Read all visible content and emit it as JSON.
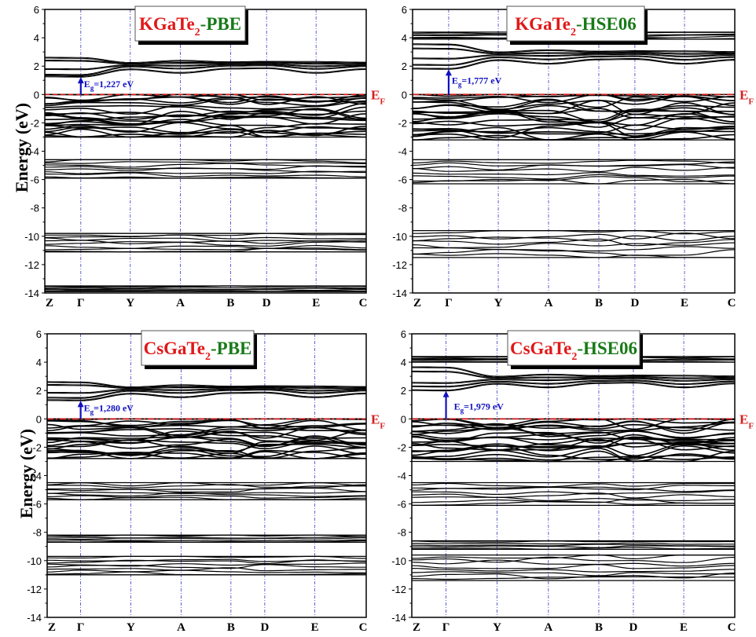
{
  "figure": {
    "ylabel": "Energy (eV)",
    "fermi_label": "E",
    "fermi_sub": "F"
  },
  "chart_data": [
    {
      "type": "line",
      "title": "KGaTe2-PBE",
      "title_parts": {
        "compound": "KGaTe",
        "sub": "2",
        "method": "-PBE"
      },
      "xlabel": "",
      "ylabel": "Energy (eV)",
      "ylim": [
        -14,
        6
      ],
      "yticks": [
        6,
        4,
        2,
        0,
        -2,
        -4,
        -6,
        -8,
        -10,
        -12,
        -14
      ],
      "kpoints": [
        "Z",
        "Γ",
        "Y",
        "A",
        "B",
        "D",
        "E",
        "C"
      ],
      "kpoint_pos": [
        0,
        0.112,
        0.266,
        0.422,
        0.578,
        0.69,
        0.844,
        1.0
      ],
      "band_gap": {
        "label": "E",
        "sub": "g",
        "value": "=1,227 eV",
        "eV": 1.227,
        "at": "Γ"
      },
      "fermi_level": 0,
      "band_groups": [
        {
          "name": "conduction",
          "range": [
            1.2,
            2.6
          ],
          "Gamma": [
            1.23,
            1.35,
            1.75,
            2.35,
            2.55
          ],
          "rest": [
            1.75,
            1.95,
            2.05,
            2.15,
            2.2
          ]
        },
        {
          "name": "valence",
          "range": [
            -3.0,
            0.0
          ]
        },
        {
          "name": "semicore-1",
          "range": [
            -5.9,
            -4.6
          ]
        },
        {
          "name": "semicore-2",
          "range": [
            -11.1,
            -9.8
          ]
        },
        {
          "name": "deep",
          "range": [
            -13.9,
            -13.5
          ]
        }
      ]
    },
    {
      "type": "line",
      "title": "KGaTe2-HSE06",
      "title_parts": {
        "compound": "KGaTe",
        "sub": "2",
        "method": "-HSE06"
      },
      "xlabel": "",
      "ylabel": "",
      "ylim": [
        -14,
        6
      ],
      "yticks": [
        6,
        4,
        2,
        0,
        -2,
        -4,
        -6,
        -8,
        -10,
        -12,
        -14
      ],
      "kpoints": [
        "Z",
        "Γ",
        "Y",
        "A",
        "B",
        "D",
        "E",
        "C"
      ],
      "kpoint_pos": [
        0,
        0.112,
        0.266,
        0.422,
        0.578,
        0.69,
        0.844,
        1.0
      ],
      "band_gap": {
        "label": "E",
        "sub": "g",
        "value": "=1,777 eV",
        "eV": 1.777,
        "at": "Γ"
      },
      "fermi_level": 0,
      "band_groups": [
        {
          "name": "conduction-low",
          "range": [
            1.8,
            3.5
          ],
          "Gamma": [
            1.78,
            2.05,
            2.5,
            3.2,
            3.5
          ],
          "rest": [
            2.4,
            2.6,
            2.75,
            2.85,
            2.95
          ]
        },
        {
          "name": "conduction-high",
          "range": [
            3.9,
            4.4
          ]
        },
        {
          "name": "valence",
          "range": [
            -3.2,
            0.0
          ]
        },
        {
          "name": "semicore-1",
          "range": [
            -6.3,
            -4.6
          ]
        },
        {
          "name": "semicore-2",
          "range": [
            -11.5,
            -9.6
          ]
        }
      ]
    },
    {
      "type": "line",
      "title": "CsGaTe2-PBE",
      "title_parts": {
        "compound": "CsGaTe",
        "sub": "2",
        "method": "-PBE"
      },
      "xlabel": "",
      "ylabel": "Energy (eV)",
      "ylim": [
        -14,
        6
      ],
      "yticks": [
        6,
        4,
        2,
        0,
        -2,
        -4,
        -6,
        -8,
        -10,
        -12,
        -14
      ],
      "kpoints": [
        "Z",
        "Γ",
        "Y",
        "A",
        "B",
        "D",
        "E",
        "C"
      ],
      "kpoint_pos": [
        0,
        0.105,
        0.262,
        0.42,
        0.576,
        0.682,
        0.839,
        1.0
      ],
      "band_gap": {
        "label": "E",
        "sub": "g",
        "value": "=1,280 eV",
        "eV": 1.28,
        "at": "Γ"
      },
      "fermi_level": 0,
      "band_groups": [
        {
          "name": "conduction",
          "range": [
            1.28,
            2.6
          ],
          "Gamma": [
            1.28,
            1.45,
            1.8,
            2.35,
            2.55
          ],
          "rest": [
            1.75,
            1.95,
            2.05,
            2.15,
            2.2
          ]
        },
        {
          "name": "valence",
          "range": [
            -2.8,
            0.0
          ]
        },
        {
          "name": "semicore-1",
          "range": [
            -5.7,
            -4.5
          ]
        },
        {
          "name": "semicore-2",
          "range": [
            -8.7,
            -8.2
          ]
        },
        {
          "name": "semicore-3",
          "range": [
            -11.0,
            -9.7
          ]
        }
      ]
    },
    {
      "type": "line",
      "title": "CsGaTe2-HSE06",
      "title_parts": {
        "compound": "CsGaTe",
        "sub": "2",
        "method": "-HSE06"
      },
      "xlabel": "",
      "ylabel": "",
      "ylim": [
        -14,
        6
      ],
      "yticks": [
        6,
        4,
        2,
        0,
        -2,
        -4,
        -6,
        -8,
        -10,
        -12,
        -14
      ],
      "kpoints": [
        "Z",
        "Γ",
        "Y",
        "A",
        "B",
        "D",
        "E",
        "C"
      ],
      "kpoint_pos": [
        0,
        0.106,
        0.264,
        0.423,
        0.579,
        0.686,
        0.842,
        1.0
      ],
      "band_gap": {
        "label": "E",
        "sub": "g",
        "value": "=1,979 eV",
        "eV": 1.979,
        "at": "Γ"
      },
      "fermi_level": 0,
      "band_groups": [
        {
          "name": "conduction-low",
          "range": [
            1.98,
            3.6
          ],
          "Gamma": [
            1.98,
            2.25,
            2.5,
            3.3,
            3.6
          ],
          "rest": [
            2.45,
            2.6,
            2.75,
            2.85,
            2.95
          ]
        },
        {
          "name": "conduction-high",
          "range": [
            4.0,
            4.4
          ]
        },
        {
          "name": "valence",
          "range": [
            -3.0,
            0.0
          ]
        },
        {
          "name": "semicore-1",
          "range": [
            -6.1,
            -4.5
          ]
        },
        {
          "name": "semicore-2",
          "range": [
            -9.2,
            -8.6
          ]
        },
        {
          "name": "semicore-3",
          "range": [
            -11.4,
            -9.6
          ]
        }
      ]
    }
  ],
  "colors": {
    "band": "#000000",
    "fermi": "#d42020",
    "kline": "#3a3ac8",
    "gap_arrow": "#1010c0",
    "title_compound": "#e01818",
    "title_method": "#187a18",
    "ylabel": "#000000"
  }
}
